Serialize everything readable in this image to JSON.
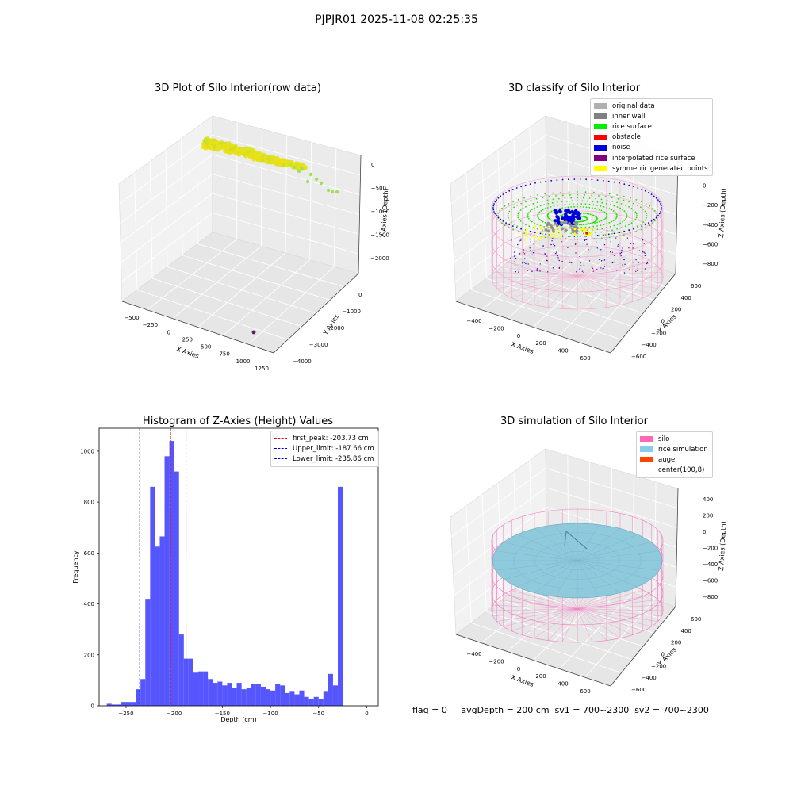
{
  "figure": {
    "suptitle": "PJPJR01 2025-11-08 02:25:35"
  },
  "chart_data": [
    {
      "type": "scatter",
      "title": "3D Plot of Silo Interior(row data)",
      "xlabel": "X Axies",
      "ylabel": "Y Axies",
      "zlabel": "Z Axies (Depth)",
      "x_ticks": [
        "−500",
        "−250",
        "0",
        "250",
        "500",
        "750",
        "1000",
        "1250"
      ],
      "y_ticks": [
        "−4000",
        "−3000",
        "−2000",
        "−1000",
        "0"
      ],
      "z_ticks": [
        "0",
        "−500",
        "−1000",
        "−1500",
        "−2000"
      ],
      "colors": {
        "main": "#d4e21a",
        "tail": "#9fe05a",
        "outlier": "#5c1a6b"
      }
    },
    {
      "type": "scatter",
      "title": "3D classify of Silo Interior",
      "xlabel": "X Axies",
      "ylabel": "Y Axies",
      "zlabel": "Z Axies (Depth)",
      "x_ticks": [
        "−400",
        "−200",
        "0",
        "200",
        "400",
        "600"
      ],
      "y_ticks": [
        "−600",
        "−400",
        "−200",
        "0",
        "200",
        "400",
        "600"
      ],
      "z_ticks": [
        "200",
        "0",
        "−200",
        "−400",
        "−600",
        "−800"
      ],
      "legend": [
        {
          "label": "original data",
          "color": "#b0b0b0"
        },
        {
          "label": "inner wall",
          "color": "#808080"
        },
        {
          "label": "rice surface",
          "color": "#00ee00"
        },
        {
          "label": "obstacle",
          "color": "#ff0000"
        },
        {
          "label": "noise",
          "color": "#0000dd"
        },
        {
          "label": "interpolated rice surface",
          "color": "#800080"
        },
        {
          "label": "symmetric generated points",
          "color": "#ffff00"
        }
      ],
      "wire_color": "#f4a3cf"
    },
    {
      "type": "bar",
      "title": "Histogram of Z-Axies (Height) Values",
      "xlabel": "Depth (cm)",
      "ylabel": "Frequency",
      "xlim": [
        -278,
        12
      ],
      "ylim": [
        0,
        1090
      ],
      "bin_start": -270,
      "bin_width": 5,
      "values": [
        8,
        5,
        5,
        15,
        15,
        15,
        65,
        105,
        420,
        860,
        625,
        665,
        980,
        1040,
        920,
        280,
        185,
        185,
        130,
        135,
        135,
        105,
        90,
        95,
        80,
        90,
        70,
        90,
        65,
        70,
        85,
        85,
        75,
        65,
        60,
        85,
        80,
        50,
        55,
        45,
        60,
        35,
        25,
        35,
        25,
        55,
        125,
        80,
        860
      ],
      "x_ticks": [
        -250,
        -200,
        -150,
        -100,
        -50,
        0
      ],
      "x_tick_labels": [
        "−250",
        "−200",
        "−150",
        "−100",
        "−50",
        "0"
      ],
      "y_ticks": [
        0,
        200,
        400,
        600,
        800,
        1000
      ],
      "y_tick_labels": [
        "0",
        "200",
        "400",
        "600",
        "800",
        "1000"
      ],
      "bar_color": "#4d4dff",
      "vlines": [
        {
          "label": "first_peak: -203.73 cm",
          "x": -203.73,
          "color": "#ff0000"
        },
        {
          "label": "Upper_limit: -187.66 cm",
          "x": -187.66,
          "color": "#0000cc"
        },
        {
          "label": "Lower_limit: -235.86 cm",
          "x": -235.86,
          "color": "#0000cc"
        }
      ]
    },
    {
      "type": "scatter",
      "title": "3D simulation of Silo Interior",
      "xlabel": "X Axies",
      "ylabel": "Y Axies",
      "zlabel": "Z Axies (Depth)",
      "x_ticks": [
        "−400",
        "−200",
        "0",
        "200",
        "400",
        "600"
      ],
      "y_ticks": [
        "−600",
        "−400",
        "−200",
        "0",
        "200",
        "400",
        "600"
      ],
      "z_ticks": [
        "400",
        "200",
        "0",
        "−200",
        "−400",
        "−600",
        "−800"
      ],
      "legend": [
        {
          "label": "silo",
          "color": "#ff69b4"
        },
        {
          "label": "rice simulation",
          "color": "#87ceeb"
        },
        {
          "label": "auger",
          "color": "#ff4500"
        },
        {
          "label": "center(100,8)",
          "color": ""
        }
      ],
      "wire_color": "#f27fc3",
      "surface_color": "#8ec9dc"
    }
  ],
  "footer": {
    "text": "flag = 0     avgDepth = 200 cm  sv1 = 700~2300  sv2 = 700~2300"
  }
}
